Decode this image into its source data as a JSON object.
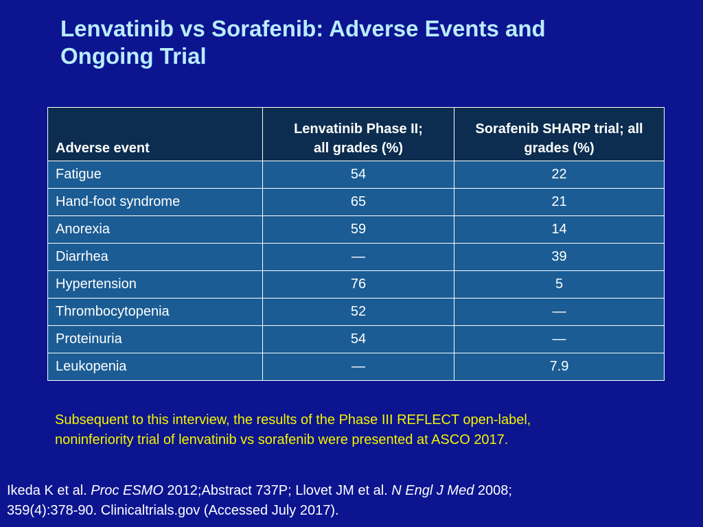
{
  "slide": {
    "title_line1": "Lenvatinib vs Sorafenib: Adverse Events and",
    "title_line2": "Ongoing Trial"
  },
  "table": {
    "headers": {
      "event": "Adverse event",
      "lenvatinib_line1": "Lenvatinib Phase II;",
      "lenvatinib_line2": "all grades (%)",
      "sorafenib_line1": "Sorafenib SHARP trial; all",
      "sorafenib_line2": "grades (%)"
    },
    "rows": [
      {
        "event": "Fatigue",
        "lenvatinib": "54",
        "sorafenib": "22"
      },
      {
        "event": "Hand-foot syndrome",
        "lenvatinib": "65",
        "sorafenib": "21"
      },
      {
        "event": "Anorexia",
        "lenvatinib": "59",
        "sorafenib": "14"
      },
      {
        "event": "Diarrhea",
        "lenvatinib": "—",
        "sorafenib": "39"
      },
      {
        "event": "Hypertension",
        "lenvatinib": "76",
        "sorafenib": "5"
      },
      {
        "event": "Thrombocytopenia",
        "lenvatinib": "52",
        "sorafenib": "—"
      },
      {
        "event": "Proteinuria",
        "lenvatinib": "54",
        "sorafenib": "—"
      },
      {
        "event": "Leukopenia",
        "lenvatinib": "—",
        "sorafenib": "7.9"
      }
    ]
  },
  "note": {
    "line1": "Subsequent to this interview, the results of the Phase III REFLECT open-label,",
    "line2": "noninferiority trial of lenvatinib vs sorafenib were presented at ASCO 2017."
  },
  "references": {
    "part1": "Ikeda K et al. ",
    "journal1": "Proc ESMO",
    "part2": " 2012;Abstract 737P; Llovet JM et al. ",
    "journal2": "N Engl J Med",
    "part3": " 2008;",
    "line2": "359(4):378-90. Clinicaltrials.gov (Accessed July 2017)."
  },
  "colors": {
    "background": "#0c1490",
    "title": "#b8ecff",
    "header_bg": "#0c2d4f",
    "cell_bg": "#1b5c94",
    "note": "#f4f400"
  }
}
